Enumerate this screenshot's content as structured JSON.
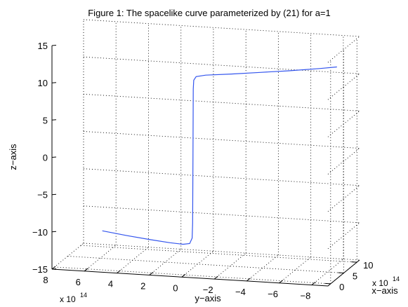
{
  "chart_data": {
    "type": "line",
    "title": "Figure 1: The spacelike curve parameterized by (21) for a=1",
    "xlabel": "x−axis",
    "ylabel": "y−axis",
    "zlabel": "z−axis",
    "x_scale_label": "x 10",
    "x_scale_exp": "14",
    "y_scale_label": "x 10",
    "y_scale_exp": "14",
    "xlim": [
      -1,
      11
    ],
    "ylim": [
      -9,
      8
    ],
    "zlim": [
      -15,
      15
    ],
    "x_ticks": [
      0,
      5,
      10
    ],
    "x_tick_labels": [
      "0",
      "5",
      "10"
    ],
    "y_ticks": [
      8,
      6,
      4,
      2,
      0,
      -2,
      -4,
      -6,
      -8
    ],
    "y_tick_labels": [
      "8",
      "6",
      "4",
      "2",
      "0",
      "−2",
      "−4",
      "−6",
      "−8"
    ],
    "z_ticks": [
      -15,
      -10,
      -5,
      0,
      5,
      10,
      15
    ],
    "z_tick_labels": [
      "−15",
      "−10",
      "−5",
      "0",
      "5",
      "10",
      "15"
    ],
    "grid": true,
    "line_color": "#3355ee",
    "series": [
      {
        "points": [
          {
            "x": 2.7,
            "y": 5.5,
            "z": -10.6
          },
          {
            "x": 2.9,
            "y": 4.0,
            "z": -11.1
          },
          {
            "x": 3.05,
            "y": 2.6,
            "z": -11.5
          },
          {
            "x": 3.15,
            "y": 1.4,
            "z": -11.78
          },
          {
            "x": 3.2,
            "y": 0.6,
            "z": -11.9
          },
          {
            "x": 3.2,
            "y": 0.2,
            "z": -11.75
          },
          {
            "x": 3.22,
            "y": 0.05,
            "z": -11.0
          },
          {
            "x": 3.22,
            "y": 0.02,
            "z": -9.0
          },
          {
            "x": 3.22,
            "y": 0.0,
            "z": 0.0
          },
          {
            "x": 3.22,
            "y": -0.02,
            "z": 9.0
          },
          {
            "x": 3.22,
            "y": -0.05,
            "z": 10.2
          },
          {
            "x": 3.2,
            "y": -0.2,
            "z": 10.7
          },
          {
            "x": 3.15,
            "y": -0.8,
            "z": 11.0
          },
          {
            "x": 3.0,
            "y": -2.4,
            "z": 11.4
          },
          {
            "x": 2.85,
            "y": -4.2,
            "z": 11.9
          },
          {
            "x": 2.7,
            "y": -6.0,
            "z": 12.4
          },
          {
            "x": 2.55,
            "y": -7.9,
            "z": 13.0
          },
          {
            "x": 2.4,
            "y": -9.0,
            "z": 13.4
          }
        ]
      }
    ]
  }
}
